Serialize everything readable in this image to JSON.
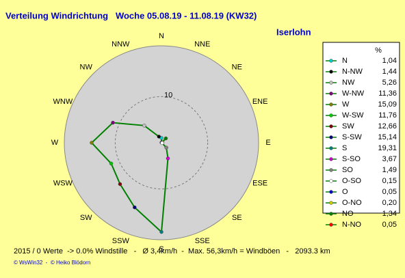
{
  "chart_data": {
    "type": "radar",
    "title": "Verteilung Windrichtung   Woche 05.08.19 - 11.08.19 (KW32)",
    "location": "Iserlohn",
    "categories": [
      "N",
      "NNE",
      "NE",
      "ENE",
      "E",
      "ESE",
      "SE",
      "SSE",
      "S",
      "SSW",
      "SW",
      "WSW",
      "W",
      "WNW",
      "NW",
      "NNW"
    ],
    "legend_labels": [
      "N",
      "N-NO",
      "NO",
      "O-NO",
      "O",
      "O-SO",
      "SO",
      "S-SO",
      "S",
      "S-SW",
      "SW",
      "W-SW",
      "W",
      "W-NW",
      "NW",
      "N-NW"
    ],
    "values": [
      1.04,
      0.05,
      1.34,
      0.2,
      0.05,
      0.15,
      1.49,
      3.67,
      19.31,
      15.14,
      12.66,
      11.76,
      15.09,
      11.36,
      5.26,
      1.44
    ],
    "value_labels": [
      "1,04",
      "0,05",
      "1,34",
      "0,20",
      "0,05",
      "0,15",
      "1,49",
      "3,67",
      "19,31",
      "15,14",
      "12,66",
      "11,76",
      "15,09",
      "11,36",
      "5,26",
      "1,44"
    ],
    "marker_colors": [
      "#00cccc",
      "#ff0000",
      "#008000",
      "#cccc00",
      "#0000cc",
      "#ffffff",
      "#808080",
      "#cc00cc",
      "#008080",
      "#000080",
      "#800000",
      "#00cc00",
      "#808000",
      "#800080",
      "#c0c0c0",
      "#000000"
    ],
    "color": "#008000",
    "legend_unit": "%",
    "rlim": [
      0,
      21
    ],
    "rticks": [
      10
    ],
    "footer": [
      "2015 / 0 Werte  -> 0.0% Windstille   -   Ø 3,4km/h  -  Max. 56,3km/h = Windböen   -   2093.3 km",
      "© WsWin32  -  © Heiko Blödorn"
    ]
  }
}
